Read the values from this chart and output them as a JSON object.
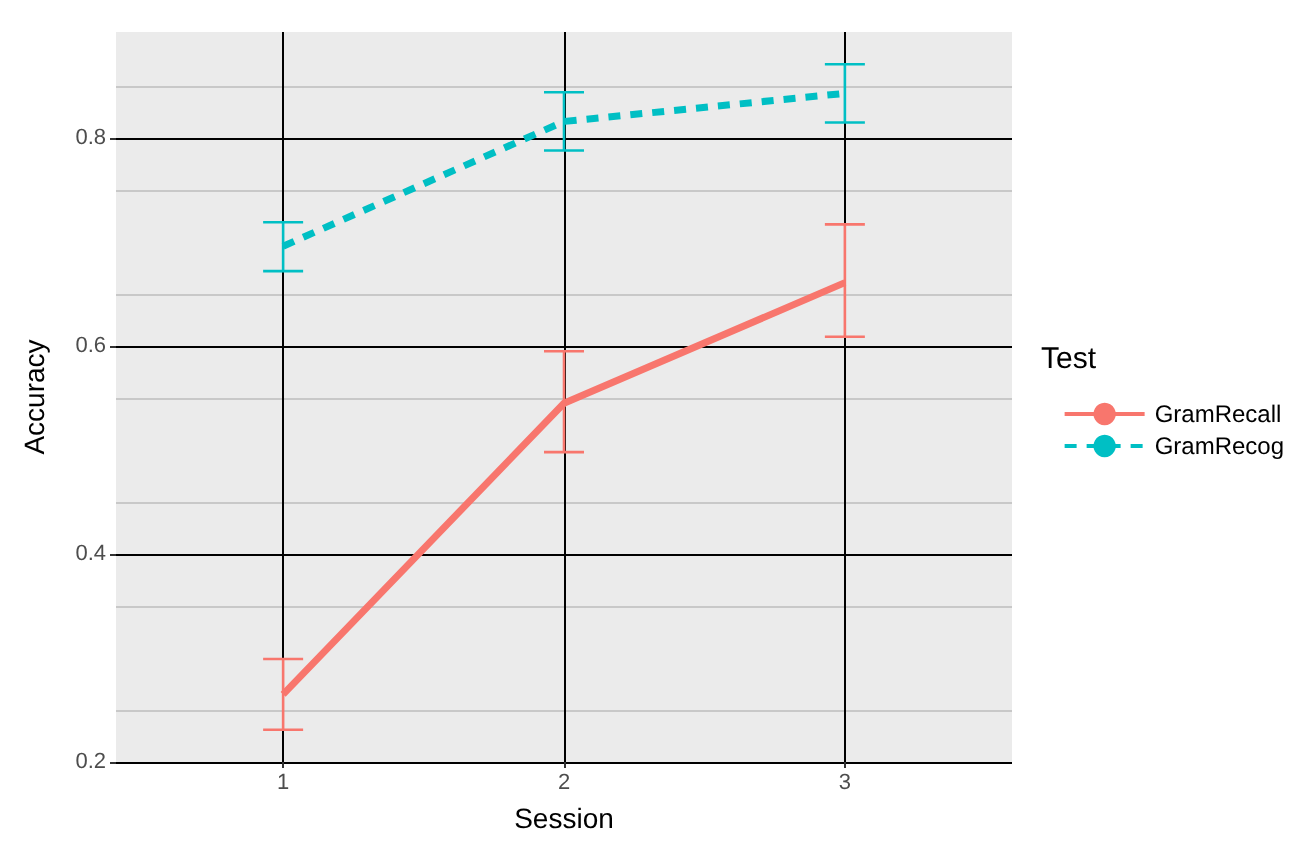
{
  "chart_data": {
    "type": "line",
    "xlabel": "Session",
    "ylabel": "Accuracy",
    "legend_title": "Test",
    "x": [
      1,
      2,
      3
    ],
    "xlim": [
      0.405,
      3.595
    ],
    "xticks": [
      1,
      2,
      3
    ],
    "ylim": [
      0.2,
      0.902
    ],
    "yticks": [
      0.2,
      0.4,
      0.6,
      0.8
    ],
    "series": [
      {
        "name": "GramRecall",
        "color": "#f8766d",
        "values": [
          0.265,
          0.545,
          0.661
        ],
        "errors": [
          [
            0.231,
            0.299
          ],
          [
            0.498,
            0.595
          ],
          [
            0.609,
            0.717
          ]
        ],
        "line_style": "solid"
      },
      {
        "name": "GramRecog",
        "color": "#00bfc4",
        "values": [
          0.696,
          0.816,
          0.843
        ],
        "errors": [
          [
            0.672,
            0.719
          ],
          [
            0.788,
            0.844
          ],
          [
            0.815,
            0.871
          ]
        ],
        "line_style": "dashed"
      }
    ],
    "grid": true,
    "legend": "right",
    "marker": "none"
  }
}
